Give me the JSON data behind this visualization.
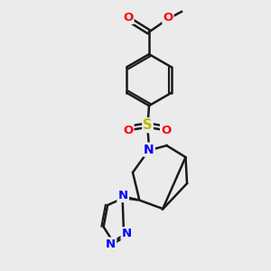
{
  "bg_color": "#ebebeb",
  "bond_color": "#1a1a1a",
  "o_color": "#ff0000",
  "n_color": "#0000ff",
  "s_color": "#bbbb00",
  "lw": 1.8,
  "figsize": [
    3.0,
    3.0
  ],
  "dpi": 100,
  "xlim": [
    0,
    10
  ],
  "ylim": [
    0,
    10
  ]
}
